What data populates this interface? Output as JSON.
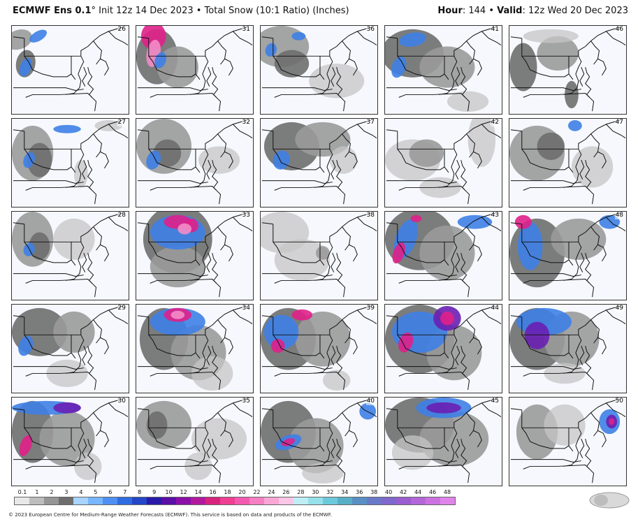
{
  "header": {
    "title_bold": "ECMWF Ens 0.1",
    "title_rest": "° Init 12z 14 Dec 2023 • Total Snow (10:1 Ratio) (Inches)",
    "hour_label": "Hour",
    "hour_value": ": 144 • ",
    "valid_label": "Valid",
    "valid_value": ": 12z Wed 20 Dec 2023"
  },
  "members": [
    "26",
    "31",
    "36",
    "41",
    "46",
    "27",
    "32",
    "37",
    "42",
    "47",
    "28",
    "33",
    "38",
    "43",
    "48",
    "29",
    "34",
    "39",
    "44",
    "49",
    "30",
    "35",
    "40",
    "45",
    "50"
  ],
  "colorbar": {
    "ticks": [
      "0.1",
      "1",
      "2",
      "3",
      "4",
      "5",
      "6",
      "7",
      "8",
      "9",
      "10",
      "12",
      "14",
      "16",
      "18",
      "20",
      "22",
      "24",
      "26",
      "28",
      "30",
      "32",
      "34",
      "36",
      "38",
      "40",
      "42",
      "44",
      "46",
      "48"
    ],
    "colors": [
      "#e8e8e8",
      "#bdbdbd",
      "#969696",
      "#6e6e6e",
      "#a8d4ff",
      "#78b6ff",
      "#4f91f2",
      "#2f6ce0",
      "#2446c8",
      "#2a1aa8",
      "#5a0fa6",
      "#8a10a8",
      "#b21a9e",
      "#d8247e",
      "#ee3f92",
      "#f25ab0",
      "#f680c4",
      "#f9a6d6",
      "#fcc6e6",
      "#bfeef5",
      "#96e0ea",
      "#6cc9db",
      "#58aec6",
      "#5a8fc4",
      "#6a78c8",
      "#8068cc",
      "#9a5ed0",
      "#b466d8",
      "#cc72e0",
      "#e084ea"
    ]
  },
  "footer": "© 2023 European Centre for Medium-Range Weather Forecasts (ECMWF). This service is based on data and products of the ECMWF.",
  "logo_text": "WeatherBELL",
  "colors": {
    "light_gray": "#c6c6c6",
    "mid_gray": "#9a9a9a",
    "dark_gray": "#6e6e6e",
    "light_blue": "#86bff7",
    "blue": "#3e7fe6",
    "purple": "#6a1fb3",
    "magenta": "#e0208a",
    "pink": "#f38cc8",
    "border": "#111111"
  },
  "map_fields": [
    [
      [
        "mid",
        10,
        20,
        20,
        14,
        -20
      ],
      [
        "dark",
        20,
        55,
        14,
        20,
        10
      ],
      [
        "blue",
        38,
        15,
        14,
        7,
        -30
      ],
      [
        "blue",
        20,
        60,
        8,
        14,
        20
      ]
    ],
    [
      [
        "dark",
        30,
        45,
        30,
        40,
        0
      ],
      [
        "mid",
        60,
        60,
        30,
        30,
        0
      ],
      [
        "magenta",
        25,
        15,
        18,
        20,
        0
      ],
      [
        "pink",
        25,
        40,
        10,
        20,
        10
      ],
      [
        "blue",
        35,
        50,
        8,
        12,
        20
      ]
    ],
    [
      [
        "mid",
        30,
        30,
        40,
        30,
        0
      ],
      [
        "dark",
        45,
        55,
        25,
        20,
        0
      ],
      [
        "light",
        110,
        80,
        40,
        25,
        0
      ],
      [
        "blue",
        15,
        35,
        8,
        10,
        20
      ],
      [
        "blue",
        55,
        15,
        10,
        6,
        0
      ]
    ],
    [
      [
        "dark",
        40,
        40,
        45,
        35,
        0
      ],
      [
        "mid",
        90,
        60,
        40,
        30,
        0
      ],
      [
        "blue",
        40,
        20,
        20,
        10,
        -10
      ],
      [
        "blue",
        20,
        60,
        10,
        16,
        20
      ],
      [
        "light",
        120,
        110,
        30,
        15,
        0
      ]
    ],
    [
      [
        "dark",
        20,
        60,
        20,
        35,
        0
      ],
      [
        "mid",
        70,
        40,
        30,
        25,
        0
      ],
      [
        "light",
        60,
        15,
        40,
        10,
        0
      ],
      [
        "dark",
        90,
        100,
        10,
        20,
        0
      ]
    ],
    [
      [
        "mid",
        30,
        50,
        30,
        40,
        0
      ],
      [
        "dark",
        40,
        60,
        18,
        25,
        0
      ],
      [
        "blue",
        25,
        60,
        8,
        12,
        20
      ],
      [
        "blue",
        80,
        15,
        20,
        6,
        0
      ],
      [
        "light",
        140,
        10,
        20,
        8,
        0
      ],
      [
        "light",
        100,
        80,
        10,
        20,
        0
      ]
    ],
    [
      [
        "mid",
        40,
        40,
        40,
        40,
        0
      ],
      [
        "dark",
        45,
        50,
        20,
        20,
        0
      ],
      [
        "blue",
        25,
        60,
        10,
        14,
        20
      ],
      [
        "light",
        120,
        60,
        30,
        20,
        0
      ]
    ],
    [
      [
        "dark",
        45,
        40,
        40,
        35,
        0
      ],
      [
        "mid",
        90,
        30,
        40,
        25,
        0
      ],
      [
        "blue",
        30,
        60,
        12,
        14,
        20
      ],
      [
        "light",
        120,
        60,
        20,
        20,
        0
      ]
    ],
    [
      [
        "light",
        40,
        60,
        40,
        30,
        0
      ],
      [
        "mid",
        60,
        50,
        25,
        20,
        0
      ],
      [
        "light",
        140,
        30,
        20,
        40,
        0
      ],
      [
        "light",
        80,
        100,
        30,
        15,
        0
      ]
    ],
    [
      [
        "mid",
        40,
        50,
        40,
        40,
        0
      ],
      [
        "dark",
        60,
        40,
        20,
        20,
        0
      ],
      [
        "blue",
        95,
        10,
        10,
        8,
        0
      ],
      [
        "light",
        120,
        70,
        30,
        30,
        0
      ]
    ],
    [
      [
        "mid",
        30,
        40,
        30,
        40,
        0
      ],
      [
        "dark",
        40,
        50,
        15,
        20,
        0
      ],
      [
        "blue",
        25,
        55,
        8,
        10,
        20
      ],
      [
        "light",
        90,
        40,
        30,
        30,
        0
      ]
    ],
    [
      [
        "dark",
        60,
        40,
        50,
        50,
        0
      ],
      [
        "mid",
        60,
        80,
        40,
        30,
        0
      ],
      [
        "blue",
        60,
        30,
        40,
        25,
        0
      ],
      [
        "magenta",
        60,
        15,
        20,
        10,
        0
      ],
      [
        "magenta",
        80,
        20,
        10,
        10,
        0
      ],
      [
        "pink",
        70,
        25,
        10,
        8,
        0
      ]
    ],
    [
      [
        "light",
        30,
        30,
        40,
        30,
        0
      ],
      [
        "light",
        60,
        70,
        40,
        30,
        0
      ],
      [
        "mid",
        90,
        60,
        10,
        10,
        0
      ]
    ],
    [
      [
        "dark",
        50,
        40,
        50,
        45,
        0
      ],
      [
        "mid",
        90,
        60,
        40,
        40,
        0
      ],
      [
        "blue",
        30,
        40,
        15,
        30,
        20
      ],
      [
        "magenta",
        20,
        60,
        8,
        16,
        20
      ],
      [
        "blue",
        130,
        15,
        25,
        10,
        0
      ],
      [
        "magenta",
        45,
        10,
        8,
        5,
        0
      ]
    ],
    [
      [
        "dark",
        40,
        60,
        40,
        50,
        0
      ],
      [
        "mid",
        100,
        40,
        40,
        30,
        0
      ],
      [
        "blue",
        30,
        50,
        18,
        35,
        0
      ],
      [
        "magenta",
        20,
        15,
        12,
        10,
        0
      ],
      [
        "blue",
        145,
        15,
        15,
        10,
        0
      ]
    ],
    [
      [
        "dark",
        40,
        40,
        40,
        35,
        0
      ],
      [
        "mid",
        90,
        40,
        30,
        30,
        0
      ],
      [
        "blue",
        20,
        60,
        10,
        15,
        20
      ],
      [
        "light",
        80,
        100,
        30,
        20,
        0
      ]
    ],
    [
      [
        "dark",
        40,
        50,
        35,
        45,
        0
      ],
      [
        "mid",
        90,
        70,
        40,
        40,
        0
      ],
      [
        "blue",
        60,
        25,
        40,
        20,
        0
      ],
      [
        "magenta",
        60,
        15,
        20,
        10,
        0
      ],
      [
        "pink",
        60,
        15,
        10,
        6,
        0
      ],
      [
        "light",
        110,
        100,
        30,
        25,
        0
      ]
    ],
    [
      [
        "dark",
        40,
        50,
        40,
        45,
        0
      ],
      [
        "mid",
        90,
        50,
        40,
        40,
        0
      ],
      [
        "blue",
        30,
        40,
        25,
        25,
        0
      ],
      [
        "magenta",
        25,
        60,
        10,
        10,
        20
      ],
      [
        "magenta",
        60,
        15,
        15,
        8,
        0
      ],
      [
        "light",
        110,
        110,
        20,
        15,
        0
      ]
    ],
    [
      [
        "dark",
        50,
        50,
        50,
        50,
        0
      ],
      [
        "mid",
        100,
        70,
        40,
        40,
        0
      ],
      [
        "blue",
        50,
        40,
        40,
        30,
        0
      ],
      [
        "purple",
        90,
        20,
        20,
        18,
        0
      ],
      [
        "magenta",
        90,
        20,
        10,
        10,
        0
      ],
      [
        "magenta",
        30,
        55,
        10,
        15,
        20
      ]
    ],
    [
      [
        "dark",
        40,
        50,
        40,
        45,
        0
      ],
      [
        "mid",
        90,
        50,
        40,
        40,
        0
      ],
      [
        "blue",
        50,
        25,
        40,
        20,
        0
      ],
      [
        "purple",
        40,
        45,
        18,
        20,
        0
      ],
      [
        "light",
        80,
        100,
        30,
        15,
        0
      ]
    ],
    [
      [
        "dark",
        30,
        50,
        30,
        45,
        0
      ],
      [
        "mid",
        80,
        60,
        40,
        40,
        0
      ],
      [
        "blue",
        50,
        15,
        50,
        10,
        0
      ],
      [
        "purple",
        80,
        15,
        20,
        8,
        0
      ],
      [
        "magenta",
        20,
        70,
        8,
        16,
        20
      ],
      [
        "light",
        110,
        100,
        20,
        20,
        0
      ]
    ],
    [
      [
        "mid",
        40,
        40,
        40,
        35,
        0
      ],
      [
        "dark",
        30,
        40,
        15,
        20,
        0
      ],
      [
        "light",
        120,
        60,
        40,
        30,
        0
      ],
      [
        "light",
        90,
        100,
        20,
        20,
        0
      ]
    ],
    [
      [
        "dark",
        40,
        50,
        40,
        45,
        0
      ],
      [
        "mid",
        80,
        70,
        40,
        40,
        0
      ],
      [
        "blue",
        40,
        65,
        20,
        10,
        -20
      ],
      [
        "magenta",
        40,
        65,
        10,
        5,
        -20
      ],
      [
        "light",
        90,
        110,
        30,
        15,
        0
      ],
      [
        "blue",
        155,
        20,
        12,
        12,
        0
      ]
    ],
    [
      [
        "dark",
        50,
        40,
        50,
        40,
        0
      ],
      [
        "mid",
        100,
        60,
        50,
        40,
        0
      ],
      [
        "blue",
        85,
        15,
        40,
        15,
        0
      ],
      [
        "purple",
        85,
        15,
        25,
        8,
        0
      ],
      [
        "light",
        40,
        80,
        30,
        25,
        0
      ]
    ],
    [
      [
        "mid",
        40,
        50,
        30,
        40,
        0
      ],
      [
        "light",
        80,
        40,
        30,
        30,
        0
      ],
      [
        "blue",
        145,
        35,
        15,
        18,
        0
      ],
      [
        "purple",
        148,
        35,
        8,
        10,
        0
      ],
      [
        "magenta",
        148,
        35,
        4,
        5,
        0
      ]
    ]
  ]
}
